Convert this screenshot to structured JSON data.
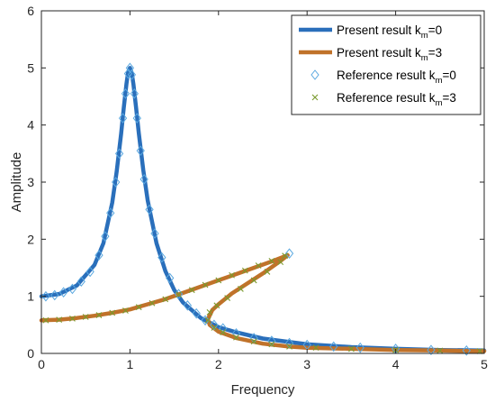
{
  "chart_data": {
    "type": "line",
    "title": "",
    "xlabel": "Frequency",
    "ylabel": "Amplitude",
    "xlim": [
      0,
      5
    ],
    "ylim": [
      0,
      6
    ],
    "x_ticks": [
      "0",
      "1",
      "2",
      "3",
      "4",
      "5"
    ],
    "y_ticks": [
      "0",
      "1",
      "2",
      "3",
      "4",
      "5",
      "6"
    ],
    "grid": false,
    "legend_position": "top-right",
    "series": [
      {
        "name": "Present result k_m=0",
        "label_main": "Present  result k",
        "label_sub": "m",
        "label_tail": "=0",
        "style": "line",
        "color": "#2a6fbb",
        "x": [
          0.0,
          0.2,
          0.4,
          0.6,
          0.7,
          0.8,
          0.85,
          0.9,
          0.93,
          0.96,
          0.98,
          1.0,
          1.02,
          1.04,
          1.07,
          1.1,
          1.15,
          1.2,
          1.3,
          1.4,
          1.5,
          1.6,
          1.8,
          2.0,
          2.2,
          2.5,
          3.0,
          3.5,
          4.0,
          4.5,
          5.0
        ],
        "y": [
          1.0,
          1.04,
          1.19,
          1.55,
          1.93,
          2.64,
          3.18,
          3.85,
          4.3,
          4.72,
          4.93,
          5.0,
          4.91,
          4.71,
          4.29,
          3.86,
          3.21,
          2.68,
          1.93,
          1.44,
          1.11,
          0.89,
          0.62,
          0.46,
          0.37,
          0.26,
          0.16,
          0.11,
          0.08,
          0.06,
          0.05
        ]
      },
      {
        "name": "Present result k_m=3",
        "label_main": "Present  result k",
        "label_sub": "m",
        "label_tail": "=3",
        "style": "line",
        "color": "#c0722a",
        "x": [
          0.0,
          0.2,
          0.4,
          0.6,
          0.8,
          1.0,
          1.2,
          1.4,
          1.6,
          1.8,
          2.0,
          2.2,
          2.4,
          2.6,
          2.78,
          2.7,
          2.5,
          2.3,
          2.15,
          2.0,
          1.93,
          1.88,
          1.9,
          2.0,
          2.2,
          2.5,
          2.8,
          3.0,
          3.5,
          4.0,
          4.5,
          5.0
        ],
        "y": [
          0.58,
          0.59,
          0.62,
          0.66,
          0.71,
          0.77,
          0.86,
          0.95,
          1.06,
          1.17,
          1.28,
          1.39,
          1.5,
          1.61,
          1.72,
          1.62,
          1.4,
          1.2,
          1.05,
          0.86,
          0.76,
          0.6,
          0.5,
          0.38,
          0.27,
          0.17,
          0.12,
          0.1,
          0.08,
          0.06,
          0.05,
          0.04
        ]
      },
      {
        "name": "Reference result k_m=0",
        "label_main": "Reference  result k",
        "label_sub": "m",
        "label_tail": "=0",
        "style": "diamond",
        "color": "#5aa8e0",
        "x": [
          0.05,
          0.15,
          0.25,
          0.35,
          0.45,
          0.55,
          0.65,
          0.72,
          0.78,
          0.84,
          0.88,
          0.92,
          0.95,
          0.98,
          1.0,
          1.02,
          1.05,
          1.08,
          1.12,
          1.16,
          1.22,
          1.28,
          1.36,
          1.45,
          1.55,
          1.65,
          1.75,
          1.85,
          1.95,
          2.05,
          2.2,
          2.4,
          2.6,
          2.8,
          3.0,
          3.3,
          3.6,
          4.0,
          4.4,
          4.8,
          2.8
        ],
        "y": [
          1.0,
          1.02,
          1.07,
          1.13,
          1.26,
          1.43,
          1.72,
          2.05,
          2.46,
          3.0,
          3.5,
          4.12,
          4.55,
          4.9,
          5.0,
          4.88,
          4.55,
          4.12,
          3.55,
          3.05,
          2.52,
          2.1,
          1.68,
          1.32,
          1.04,
          0.84,
          0.7,
          0.58,
          0.5,
          0.44,
          0.35,
          0.27,
          0.22,
          0.18,
          0.15,
          0.12,
          0.1,
          0.08,
          0.06,
          0.05,
          1.75
        ]
      },
      {
        "name": "Reference result k_m=3",
        "label_main": "Reference  result k",
        "label_sub": "m",
        "label_tail": "=3",
        "style": "cross",
        "color": "#7a9a2e",
        "x": [
          0.05,
          0.2,
          0.35,
          0.5,
          0.65,
          0.8,
          0.95,
          1.1,
          1.25,
          1.4,
          1.55,
          1.7,
          1.85,
          2.0,
          2.15,
          2.3,
          2.45,
          2.6,
          2.75,
          2.7,
          2.55,
          2.4,
          2.25,
          2.1,
          1.98,
          1.9,
          1.88,
          1.95,
          2.05,
          2.2,
          2.4,
          2.6,
          2.8,
          3.1,
          3.5,
          4.0,
          4.5,
          4.95
        ],
        "y": [
          0.58,
          0.59,
          0.61,
          0.64,
          0.67,
          0.71,
          0.75,
          0.81,
          0.88,
          0.95,
          1.03,
          1.11,
          1.2,
          1.28,
          1.37,
          1.45,
          1.54,
          1.62,
          1.71,
          1.6,
          1.43,
          1.28,
          1.13,
          0.97,
          0.84,
          0.72,
          0.58,
          0.45,
          0.37,
          0.28,
          0.21,
          0.16,
          0.12,
          0.1,
          0.08,
          0.06,
          0.05,
          0.04
        ]
      }
    ]
  }
}
